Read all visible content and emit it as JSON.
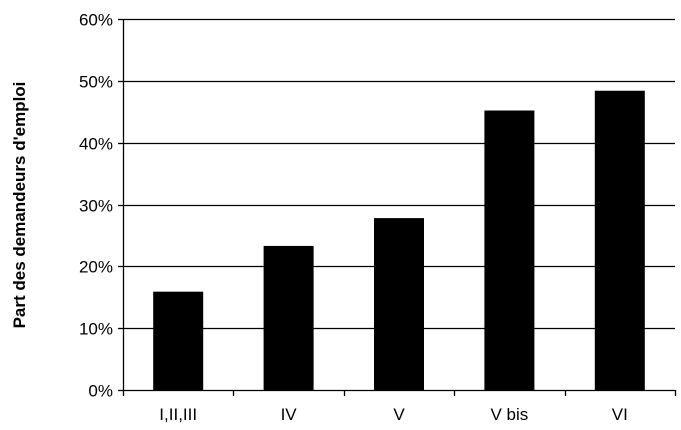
{
  "chart_data": {
    "type": "bar",
    "title": "",
    "xlabel": "",
    "ylabel": "Part des demandeurs d'emploi",
    "categories": [
      "I,II,III",
      "IV",
      "V",
      "V bis",
      "VI"
    ],
    "values": [
      0.159,
      0.233,
      0.278,
      0.452,
      0.484
    ],
    "ylim": [
      0,
      0.6
    ],
    "yticks": [
      0,
      0.1,
      0.2,
      0.3,
      0.4,
      0.5,
      0.6
    ],
    "ytick_labels": [
      "0%",
      "10%",
      "20%",
      "30%",
      "40%",
      "50%",
      "60%"
    ],
    "grid": "horizontal",
    "legend": "none",
    "bar_color": "#000000"
  }
}
